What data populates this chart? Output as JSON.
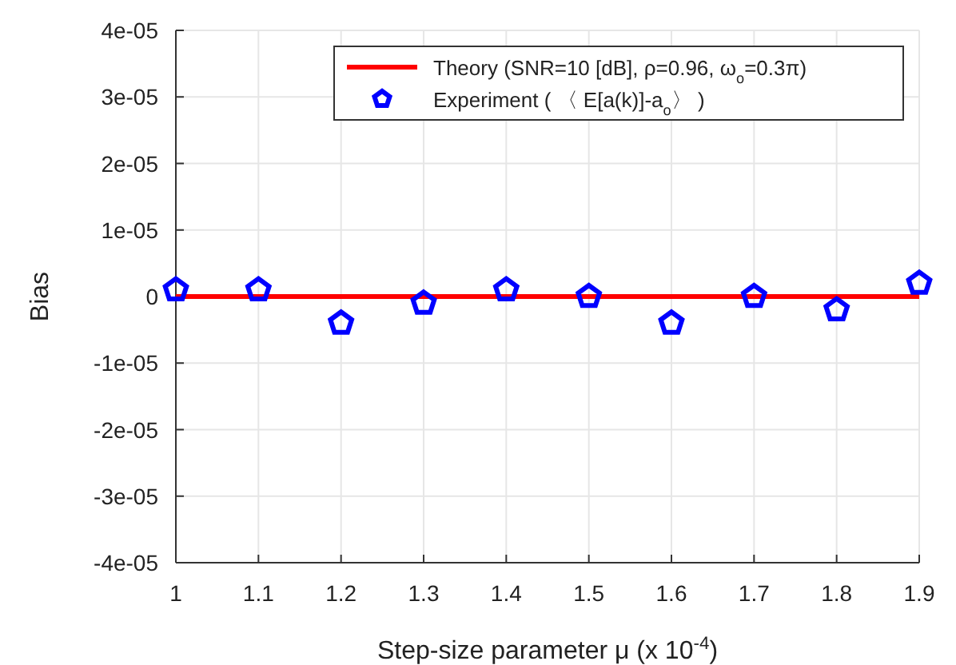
{
  "chart_data": {
    "type": "line",
    "xlabel": "Step-size parameter μ (x 10$^{-4}$)",
    "ylabel": "Bias",
    "xlim": [
      1,
      1.9
    ],
    "xticks": [
      1,
      1.1,
      1.2,
      1.3,
      1.4,
      1.5,
      1.6,
      1.7,
      1.8,
      1.9
    ],
    "ylim": [
      -4e-05,
      4e-05
    ],
    "yticks": [
      {
        "value": -4e-05,
        "label": "-4e-05"
      },
      {
        "value": -3e-05,
        "label": "-3e-05"
      },
      {
        "value": -2e-05,
        "label": "-2e-05"
      },
      {
        "value": -1e-05,
        "label": "-1e-05"
      },
      {
        "value": 0,
        "label": "0"
      },
      {
        "value": 1e-05,
        "label": "1e-05"
      },
      {
        "value": 2e-05,
        "label": "2e-05"
      },
      {
        "value": 3e-05,
        "label": "3e-05"
      },
      {
        "value": 4e-05,
        "label": "4e-05"
      }
    ],
    "grid": true,
    "legend": "top right",
    "series": [
      {
        "name": "Theory (SNR=10 [dB], ρ=0.96, ω$_{o}$=0.3π)",
        "color": "#ff0000",
        "x": [
          1,
          1.9
        ],
        "values": [
          0,
          0
        ],
        "marker": "none",
        "line_style": "solid"
      },
      {
        "type": "scatter",
        "name": "Experiment ( 〈 E[a(k)]-a$_{o}$〉 )",
        "color": "#0000ff",
        "x": [
          1,
          1.1,
          1.2,
          1.3,
          1.4,
          1.5,
          1.6,
          1.7,
          1.8,
          1.9
        ],
        "values": [
          1e-06,
          1e-06,
          -4e-06,
          -1e-06,
          1e-06,
          0,
          -4e-06,
          0,
          -2e-06,
          2e-06
        ]
      }
    ]
  }
}
